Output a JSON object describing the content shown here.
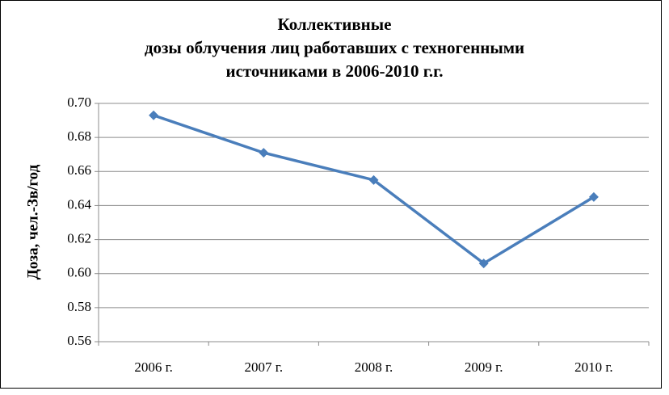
{
  "chart_data": {
    "type": "line",
    "title": [
      "Коллективные",
      "дозы облучения лиц работавших с техногенными",
      "источниками в 2006-2010 г.г."
    ],
    "y_label": "Доза, чел.-Зв/год",
    "categories": [
      "2006 г.",
      "2007 г.",
      "2008 г.",
      "2009 г.",
      "2010 г."
    ],
    "values": [
      0.693,
      0.671,
      0.655,
      0.606,
      0.645
    ],
    "color": "#4a7ebb",
    "ylim": [
      0.56,
      0.7
    ],
    "yticks": [
      0.56,
      0.58,
      {
        "value": 0.6,
        "label": "0.60"
      },
      0.62,
      0.64,
      0.66,
      0.68,
      {
        "value": 0.7,
        "label": "0.70"
      }
    ],
    "grid": true
  }
}
